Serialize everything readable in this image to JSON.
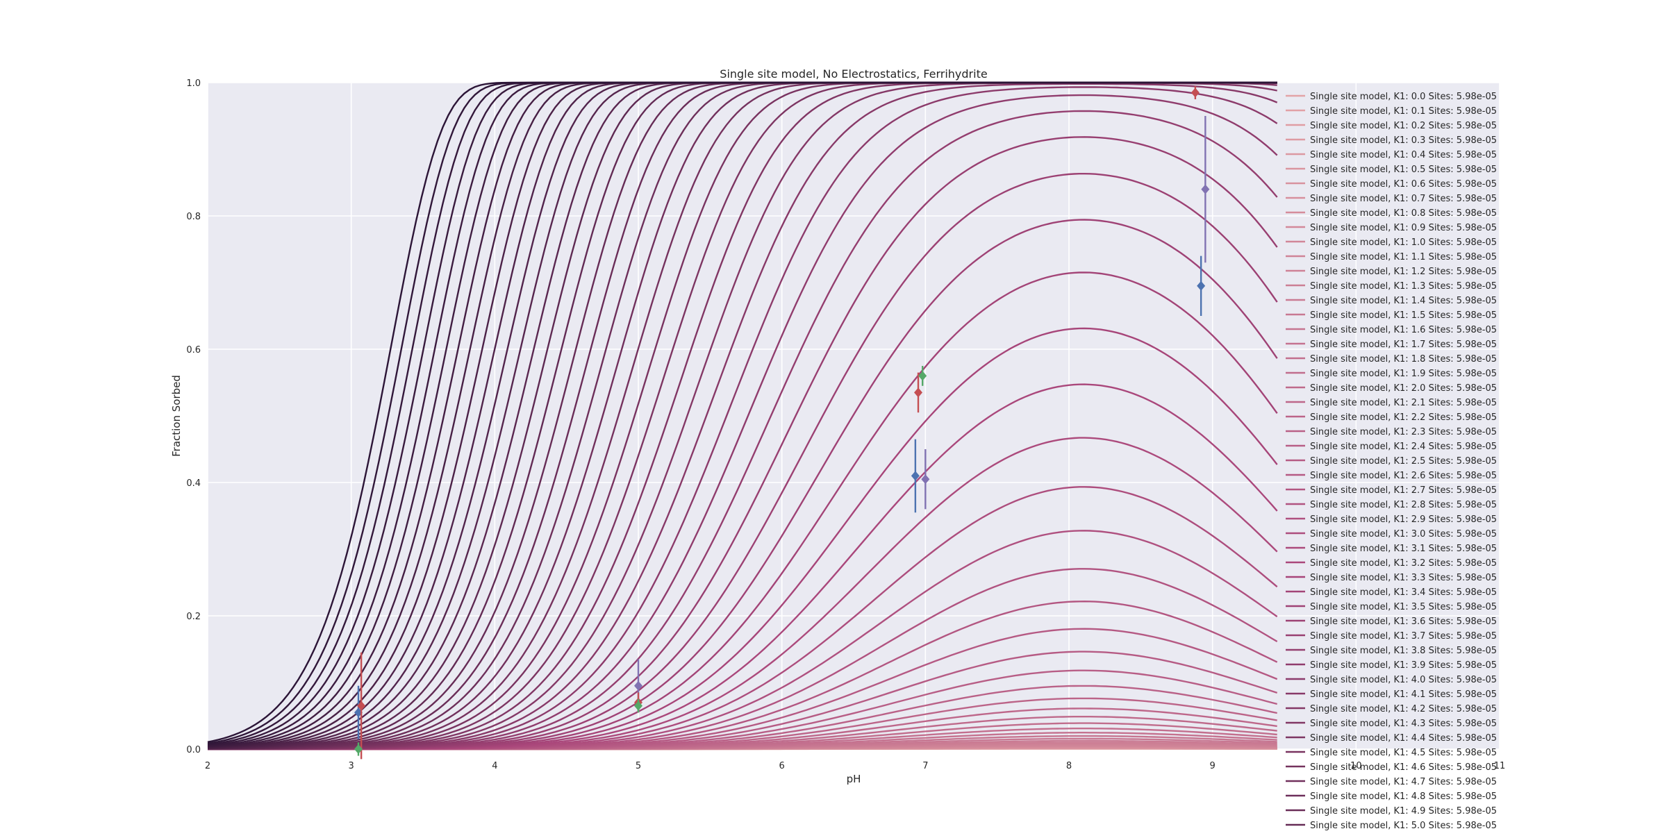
{
  "chart_data": {
    "type": "line",
    "title": "Single site model, No Electrostatics, Ferrihydrite",
    "xlabel": "pH",
    "ylabel": "Fraction Sorbed",
    "xlim": [
      2,
      11
    ],
    "ylim": [
      0.0,
      1.0
    ],
    "x_ticks": [
      "2",
      "3",
      "4",
      "5",
      "6",
      "7",
      "8",
      "9",
      "10",
      "11"
    ],
    "y_ticks": [
      "0.0",
      "0.2",
      "0.4",
      "0.6",
      "0.8",
      "1.0"
    ],
    "grid": true,
    "legend_placement": "right",
    "color_low_k": "#e3a3a6",
    "color_mid_k": "#a9467a",
    "color_high_k": "#2c1537",
    "background": "#eaeaf2",
    "legend_entries": [
      "Single site model, K1: 0.0 Sites: 5.98e-05",
      "Single site model, K1: 0.1 Sites: 5.98e-05",
      "Single site model, K1: 0.2 Sites: 5.98e-05",
      "Single site model, K1: 0.3 Sites: 5.98e-05",
      "Single site model, K1: 0.4 Sites: 5.98e-05",
      "Single site model, K1: 0.5 Sites: 5.98e-05",
      "Single site model, K1: 0.6 Sites: 5.98e-05",
      "Single site model, K1: 0.7 Sites: 5.98e-05",
      "Single site model, K1: 0.8 Sites: 5.98e-05",
      "Single site model, K1: 0.9 Sites: 5.98e-05",
      "Single site model, K1: 1.0 Sites: 5.98e-05",
      "Single site model, K1: 1.1 Sites: 5.98e-05",
      "Single site model, K1: 1.2 Sites: 5.98e-05",
      "Single site model, K1: 1.3 Sites: 5.98e-05",
      "Single site model, K1: 1.4 Sites: 5.98e-05",
      "Single site model, K1: 1.5 Sites: 5.98e-05",
      "Single site model, K1: 1.6 Sites: 5.98e-05",
      "Single site model, K1: 1.7 Sites: 5.98e-05",
      "Single site model, K1: 1.8 Sites: 5.98e-05",
      "Single site model, K1: 1.9 Sites: 5.98e-05",
      "Single site model, K1: 2.0 Sites: 5.98e-05",
      "Single site model, K1: 2.1 Sites: 5.98e-05",
      "Single site model, K1: 2.2 Sites: 5.98e-05",
      "Single site model, K1: 2.3 Sites: 5.98e-05",
      "Single site model, K1: 2.4 Sites: 5.98e-05",
      "Single site model, K1: 2.5 Sites: 5.98e-05",
      "Single site model, K1: 2.6 Sites: 5.98e-05",
      "Single site model, K1: 2.7 Sites: 5.98e-05",
      "Single site model, K1: 2.8 Sites: 5.98e-05",
      "Single site model, K1: 2.9 Sites: 5.98e-05",
      "Single site model, K1: 3.0 Sites: 5.98e-05",
      "Single site model, K1: 3.1 Sites: 5.98e-05",
      "Single site model, K1: 3.2 Sites: 5.98e-05",
      "Single site model, K1: 3.3 Sites: 5.98e-05",
      "Single site model, K1: 3.4 Sites: 5.98e-05",
      "Single site model, K1: 3.5 Sites: 5.98e-05",
      "Single site model, K1: 3.6 Sites: 5.98e-05",
      "Single site model, K1: 3.7 Sites: 5.98e-05",
      "Single site model, K1: 3.8 Sites: 5.98e-05",
      "Single site model, K1: 3.9 Sites: 5.98e-05",
      "Single site model, K1: 4.0 Sites: 5.98e-05",
      "Single site model, K1: 4.1 Sites: 5.98e-05",
      "Single site model, K1: 4.2 Sites: 5.98e-05",
      "Single site model, K1: 4.3 Sites: 5.98e-05",
      "Single site model, K1: 4.4 Sites: 5.98e-05",
      "Single site model, K1: 4.5 Sites: 5.98e-05",
      "Single site model, K1: 4.6 Sites: 5.98e-05",
      "Single site model, K1: 4.7 Sites: 5.98e-05",
      "Single site model, K1: 4.8 Sites: 5.98e-05",
      "Single site model, K1: 4.9 Sites: 5.98e-05",
      "Single site model, K1: 5.0 Sites: 5.98e-05"
    ],
    "measured_points": [
      {
        "color": "#4c72b0",
        "x": 3.05,
        "y": 0.055,
        "yerr": 0.04
      },
      {
        "color": "#c44e52",
        "x": 3.07,
        "y": 0.065,
        "yerr": 0.08
      },
      {
        "color": "#55a868",
        "x": 3.05,
        "y": 0.0,
        "yerr": 0.01
      },
      {
        "color": "#8172b2",
        "x": 5.0,
        "y": 0.095,
        "yerr": 0.04
      },
      {
        "color": "#c44e52",
        "x": 5.0,
        "y": 0.07,
        "yerr": 0.015
      },
      {
        "color": "#55a868",
        "x": 5.0,
        "y": 0.065,
        "yerr": 0.01
      },
      {
        "color": "#4c72b0",
        "x": 6.93,
        "y": 0.41,
        "yerr": 0.055
      },
      {
        "color": "#8172b2",
        "x": 7.0,
        "y": 0.405,
        "yerr": 0.045
      },
      {
        "color": "#c44e52",
        "x": 6.95,
        "y": 0.535,
        "yerr": 0.03
      },
      {
        "color": "#55a868",
        "x": 6.98,
        "y": 0.56,
        "yerr": 0.015
      },
      {
        "color": "#4c72b0",
        "x": 8.92,
        "y": 0.695,
        "yerr": 0.045
      },
      {
        "color": "#8172b2",
        "x": 8.95,
        "y": 0.84,
        "yerr": 0.11
      },
      {
        "color": "#c44e52",
        "x": 8.88,
        "y": 0.985,
        "yerr": 0.01
      }
    ]
  }
}
